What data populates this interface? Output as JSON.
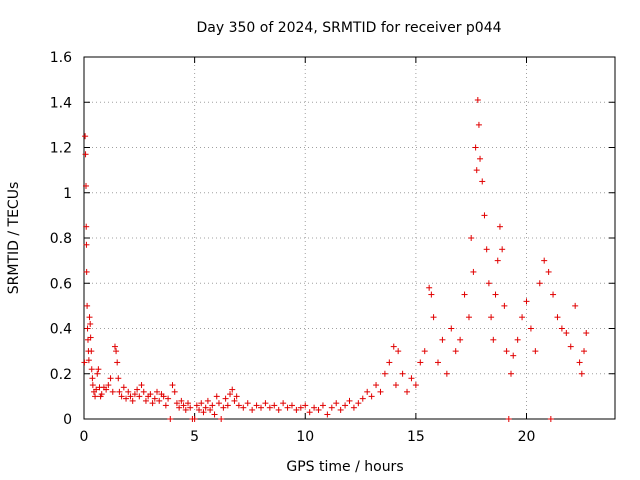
{
  "chart_data": {
    "type": "scatter",
    "title": "Day 350 of 2024, SRMTID for receiver p044",
    "xlabel": "GPS time / hours",
    "ylabel": "SRMTID / TECUs",
    "xlim": [
      0,
      24
    ],
    "ylim": [
      0,
      1.6
    ],
    "xticks": [
      0,
      5,
      10,
      15,
      20
    ],
    "xtick_labels": [
      "0",
      "5",
      "10",
      "15",
      "20"
    ],
    "yticks": [
      0,
      0.2,
      0.4,
      0.6,
      0.8,
      1,
      1.2,
      1.4,
      1.6
    ],
    "ytick_labels": [
      "0",
      "0.2",
      "0.4",
      "0.6",
      "0.8",
      "1",
      "1.2",
      "1.4",
      "1.6"
    ],
    "grid": true,
    "marker": "+",
    "marker_color": "#e00000",
    "series": [
      {
        "name": "SRMTID",
        "points": [
          [
            0.02,
            0.25
          ],
          [
            0.05,
            1.25
          ],
          [
            0.07,
            1.17
          ],
          [
            0.09,
            1.03
          ],
          [
            0.1,
            0.85
          ],
          [
            0.11,
            0.77
          ],
          [
            0.12,
            0.65
          ],
          [
            0.14,
            0.5
          ],
          [
            0.16,
            0.4
          ],
          [
            0.18,
            0.35
          ],
          [
            0.2,
            0.3
          ],
          [
            0.22,
            0.26
          ],
          [
            0.25,
            0.45
          ],
          [
            0.28,
            0.42
          ],
          [
            0.3,
            0.36
          ],
          [
            0.33,
            0.3
          ],
          [
            0.35,
            0.22
          ],
          [
            0.38,
            0.18
          ],
          [
            0.4,
            0.15
          ],
          [
            0.45,
            0.12
          ],
          [
            0.5,
            0.1
          ],
          [
            0.55,
            0.13
          ],
          [
            0.6,
            0.2
          ],
          [
            0.65,
            0.22
          ],
          [
            0.7,
            0.14
          ],
          [
            0.75,
            0.1
          ],
          [
            0.8,
            0.11
          ],
          [
            0.9,
            0.14
          ],
          [
            1.0,
            0.13
          ],
          [
            1.1,
            0.15
          ],
          [
            1.2,
            0.18
          ],
          [
            1.3,
            0.12
          ],
          [
            1.4,
            0.32
          ],
          [
            1.45,
            0.3
          ],
          [
            1.5,
            0.25
          ],
          [
            1.55,
            0.18
          ],
          [
            1.6,
            0.12
          ],
          [
            1.7,
            0.1
          ],
          [
            1.8,
            0.14
          ],
          [
            1.9,
            0.09
          ],
          [
            2.0,
            0.12
          ],
          [
            2.1,
            0.1
          ],
          [
            2.2,
            0.08
          ],
          [
            2.3,
            0.11
          ],
          [
            2.4,
            0.13
          ],
          [
            2.5,
            0.1
          ],
          [
            2.6,
            0.15
          ],
          [
            2.7,
            0.12
          ],
          [
            2.8,
            0.08
          ],
          [
            2.9,
            0.1
          ],
          [
            3.0,
            0.11
          ],
          [
            3.1,
            0.07
          ],
          [
            3.2,
            0.09
          ],
          [
            3.3,
            0.12
          ],
          [
            3.4,
            0.08
          ],
          [
            3.5,
            0.11
          ],
          [
            3.6,
            0.1
          ],
          [
            3.7,
            0.06
          ],
          [
            3.8,
            0.09
          ],
          [
            3.9,
            0.0
          ],
          [
            4.0,
            0.15
          ],
          [
            4.1,
            0.12
          ],
          [
            4.2,
            0.07
          ],
          [
            4.3,
            0.05
          ],
          [
            4.4,
            0.08
          ],
          [
            4.5,
            0.06
          ],
          [
            4.6,
            0.04
          ],
          [
            4.7,
            0.07
          ],
          [
            4.8,
            0.05
          ],
          [
            4.9,
            0.0
          ],
          [
            5.0,
            0.0
          ],
          [
            5.1,
            0.06
          ],
          [
            5.2,
            0.04
          ],
          [
            5.3,
            0.07
          ],
          [
            5.4,
            0.03
          ],
          [
            5.5,
            0.05
          ],
          [
            5.6,
            0.08
          ],
          [
            5.7,
            0.04
          ],
          [
            5.8,
            0.06
          ],
          [
            5.9,
            0.02
          ],
          [
            6.0,
            0.1
          ],
          [
            6.1,
            0.07
          ],
          [
            6.2,
            0.0
          ],
          [
            6.3,
            0.05
          ],
          [
            6.4,
            0.09
          ],
          [
            6.5,
            0.06
          ],
          [
            6.6,
            0.11
          ],
          [
            6.7,
            0.13
          ],
          [
            6.8,
            0.08
          ],
          [
            6.9,
            0.1
          ],
          [
            7.0,
            0.06
          ],
          [
            7.2,
            0.05
          ],
          [
            7.4,
            0.07
          ],
          [
            7.6,
            0.04
          ],
          [
            7.8,
            0.06
          ],
          [
            8.0,
            0.05
          ],
          [
            8.2,
            0.07
          ],
          [
            8.4,
            0.05
          ],
          [
            8.6,
            0.06
          ],
          [
            8.8,
            0.04
          ],
          [
            9.0,
            0.07
          ],
          [
            9.2,
            0.05
          ],
          [
            9.4,
            0.06
          ],
          [
            9.6,
            0.04
          ],
          [
            9.8,
            0.05
          ],
          [
            10.0,
            0.06
          ],
          [
            10.2,
            0.03
          ],
          [
            10.4,
            0.05
          ],
          [
            10.6,
            0.04
          ],
          [
            10.8,
            0.06
          ],
          [
            11.0,
            0.02
          ],
          [
            11.2,
            0.05
          ],
          [
            11.4,
            0.07
          ],
          [
            11.6,
            0.04
          ],
          [
            11.8,
            0.06
          ],
          [
            12.0,
            0.08
          ],
          [
            12.2,
            0.05
          ],
          [
            12.4,
            0.07
          ],
          [
            12.6,
            0.09
          ],
          [
            12.8,
            0.12
          ],
          [
            13.0,
            0.1
          ],
          [
            13.2,
            0.15
          ],
          [
            13.4,
            0.12
          ],
          [
            13.6,
            0.2
          ],
          [
            13.8,
            0.25
          ],
          [
            14.0,
            0.32
          ],
          [
            14.1,
            0.15
          ],
          [
            14.2,
            0.3
          ],
          [
            14.4,
            0.2
          ],
          [
            14.6,
            0.12
          ],
          [
            14.8,
            0.18
          ],
          [
            15.0,
            0.15
          ],
          [
            15.2,
            0.25
          ],
          [
            15.4,
            0.3
          ],
          [
            15.6,
            0.58
          ],
          [
            15.7,
            0.55
          ],
          [
            15.8,
            0.45
          ],
          [
            16.0,
            0.25
          ],
          [
            16.2,
            0.35
          ],
          [
            16.4,
            0.2
          ],
          [
            16.6,
            0.4
          ],
          [
            16.8,
            0.3
          ],
          [
            17.0,
            0.35
          ],
          [
            17.2,
            0.55
          ],
          [
            17.4,
            0.45
          ],
          [
            17.5,
            0.8
          ],
          [
            17.6,
            0.65
          ],
          [
            17.7,
            1.2
          ],
          [
            17.75,
            1.1
          ],
          [
            17.8,
            1.41
          ],
          [
            17.85,
            1.3
          ],
          [
            17.9,
            1.15
          ],
          [
            18.0,
            1.05
          ],
          [
            18.1,
            0.9
          ],
          [
            18.2,
            0.75
          ],
          [
            18.3,
            0.6
          ],
          [
            18.4,
            0.45
          ],
          [
            18.5,
            0.35
          ],
          [
            18.6,
            0.55
          ],
          [
            18.7,
            0.7
          ],
          [
            18.8,
            0.85
          ],
          [
            18.9,
            0.75
          ],
          [
            19.0,
            0.5
          ],
          [
            19.1,
            0.3
          ],
          [
            19.2,
            0.0
          ],
          [
            19.3,
            0.2
          ],
          [
            19.4,
            0.28
          ],
          [
            19.6,
            0.35
          ],
          [
            19.8,
            0.45
          ],
          [
            20.0,
            0.52
          ],
          [
            20.2,
            0.4
          ],
          [
            20.4,
            0.3
          ],
          [
            20.6,
            0.6
          ],
          [
            20.8,
            0.7
          ],
          [
            21.0,
            0.65
          ],
          [
            21.1,
            0.0
          ],
          [
            21.2,
            0.55
          ],
          [
            21.4,
            0.45
          ],
          [
            21.6,
            0.4
          ],
          [
            21.8,
            0.38
          ],
          [
            22.0,
            0.32
          ],
          [
            22.2,
            0.5
          ],
          [
            22.4,
            0.25
          ],
          [
            22.5,
            0.2
          ],
          [
            22.6,
            0.3
          ],
          [
            22.7,
            0.38
          ]
        ]
      }
    ]
  }
}
